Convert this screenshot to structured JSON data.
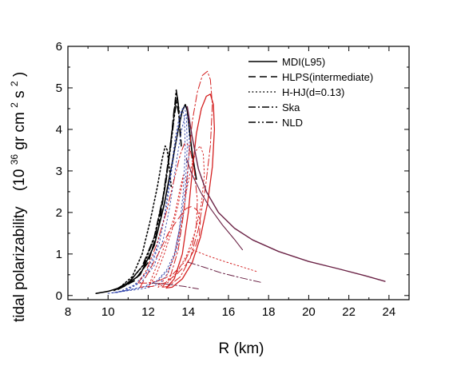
{
  "chart_data": {
    "type": "line",
    "title": "",
    "xlabel": "R (km)",
    "ylabel": {
      "prefix": "tidal polarizability",
      "units_open": "(10",
      "units_exp": "36",
      "units_mid": " gr cm",
      "units_exp2": "2",
      "units_end": " s",
      "units_exp3": "2",
      "units_close": ")"
    },
    "xlim": [
      8,
      25
    ],
    "ylim": [
      -0.1,
      6
    ],
    "xticks": [
      8,
      10,
      12,
      14,
      16,
      18,
      20,
      22,
      24
    ],
    "yticks": [
      0,
      1,
      2,
      3,
      4,
      5,
      6
    ],
    "grid": false,
    "legend_position": "top-right",
    "legend": [
      {
        "label": "MDI(L95)",
        "dash": "solid"
      },
      {
        "label": "HLPS(intermediate)",
        "dash": "dashed"
      },
      {
        "label": "H-HJ(d=0.13)",
        "dash": "dotted"
      },
      {
        "label": "Ska",
        "dash": "dashdot"
      },
      {
        "label": "NLD",
        "dash": "dashdotdot"
      }
    ],
    "colors": {
      "black": "#000000",
      "blue": "#2b3fa8",
      "red": "#d42020",
      "purple": "#6b2346"
    },
    "series": [
      {
        "color": "black",
        "dash": "solid",
        "width": 1.6,
        "x": [
          9.4,
          10.0,
          10.8,
          11.6,
          12.3,
          12.8,
          13.2,
          13.5,
          13.7,
          13.85,
          13.95,
          14.05,
          14.2,
          14.4
        ],
        "y": [
          0.05,
          0.1,
          0.22,
          0.5,
          1.2,
          2.2,
          3.2,
          4.0,
          4.45,
          4.6,
          4.45,
          4.0,
          3.4,
          2.8
        ]
      },
      {
        "color": "black",
        "dash": "dashed",
        "width": 1.6,
        "x": [
          10.5,
          11.3,
          12.0,
          12.5,
          12.9,
          13.15,
          13.3,
          13.4,
          13.55,
          13.65
        ],
        "y": [
          0.15,
          0.35,
          0.8,
          1.6,
          2.8,
          3.8,
          4.5,
          4.7,
          4.3,
          3.6
        ]
      },
      {
        "color": "black",
        "dash": "dotted",
        "width": 1.6,
        "x": [
          10.6,
          11.2,
          11.7,
          12.1,
          12.45,
          12.7,
          12.85,
          12.95,
          13.05,
          13.15
        ],
        "y": [
          0.2,
          0.45,
          1.0,
          1.8,
          2.6,
          3.3,
          3.6,
          3.5,
          3.1,
          2.6
        ]
      },
      {
        "color": "black",
        "dash": "dashdot",
        "width": 1.5,
        "x": [
          10.3,
          11.0,
          11.7,
          12.3,
          12.75,
          13.05,
          13.25,
          13.4,
          13.5,
          13.6
        ],
        "y": [
          0.12,
          0.3,
          0.7,
          1.4,
          2.4,
          3.4,
          4.2,
          4.95,
          4.6,
          3.8
        ]
      },
      {
        "color": "black",
        "dash": "dashdotdot",
        "width": 1.5,
        "x": [
          10.4,
          11.1,
          11.8,
          12.35,
          12.8,
          13.1,
          13.3,
          13.45,
          13.55
        ],
        "y": [
          0.15,
          0.35,
          0.75,
          1.45,
          2.5,
          3.5,
          4.3,
          4.8,
          4.4
        ]
      },
      {
        "color": "blue",
        "dash": "dotted",
        "width": 0.9,
        "x": [
          10.0,
          10.6,
          11.3,
          11.9,
          12.4,
          12.8,
          13.1,
          13.35,
          13.55,
          13.7,
          13.8,
          13.85,
          13.75,
          13.55,
          13.3,
          13.0,
          12.6,
          12.1,
          11.4,
          10.6,
          10.0
        ],
        "y": [
          0.05,
          0.1,
          0.25,
          0.55,
          1.1,
          1.9,
          2.9,
          3.8,
          4.3,
          4.5,
          4.3,
          3.5,
          2.5,
          1.6,
          0.95,
          0.55,
          0.3,
          0.2,
          0.14,
          0.09,
          0.05
        ]
      },
      {
        "color": "blue",
        "dash": "dotted",
        "width": 0.9,
        "x": [
          10.2,
          10.8,
          11.5,
          12.1,
          12.55,
          12.9,
          13.2,
          13.45,
          13.65,
          13.8,
          13.9,
          13.95,
          13.85,
          13.6,
          13.3,
          12.9,
          12.4,
          11.8,
          11.0,
          10.2
        ],
        "y": [
          0.06,
          0.12,
          0.3,
          0.65,
          1.25,
          2.1,
          3.1,
          3.9,
          4.4,
          4.55,
          4.35,
          3.6,
          2.6,
          1.7,
          1.0,
          0.6,
          0.34,
          0.22,
          0.13,
          0.06
        ]
      },
      {
        "color": "blue",
        "dash": "dotted",
        "width": 0.9,
        "x": [
          10.4,
          11.0,
          11.7,
          12.3,
          12.75,
          13.1,
          13.4,
          13.65,
          13.85,
          14.0,
          14.05,
          13.95,
          13.7,
          13.4,
          13.0,
          12.5,
          11.9,
          11.1,
          10.4
        ],
        "y": [
          0.07,
          0.14,
          0.34,
          0.72,
          1.35,
          2.2,
          3.2,
          3.95,
          4.35,
          4.3,
          3.7,
          2.7,
          1.75,
          1.05,
          0.62,
          0.36,
          0.22,
          0.13,
          0.07
        ]
      },
      {
        "color": "red",
        "dash": "dashdot",
        "width": 1.0,
        "x": [
          12.7,
          13.1,
          13.5,
          13.8,
          14.0,
          14.2,
          14.45,
          14.7,
          14.95,
          15.1,
          15.2,
          15.1,
          14.85,
          14.5,
          14.1,
          13.6,
          13.0,
          12.7
        ],
        "y": [
          0.2,
          0.45,
          1.1,
          2.1,
          3.2,
          4.2,
          4.9,
          5.3,
          5.4,
          5.2,
          4.6,
          3.6,
          2.6,
          1.6,
          0.9,
          0.45,
          0.22,
          0.2
        ]
      },
      {
        "color": "red",
        "dash": "solid",
        "width": 1.3,
        "x": [
          12.9,
          13.3,
          13.7,
          14.0,
          14.2,
          14.4,
          14.65,
          14.9,
          15.1,
          15.25,
          15.3,
          15.2,
          14.95,
          14.6,
          14.2,
          13.7,
          13.2,
          12.9
        ],
        "y": [
          0.18,
          0.4,
          1.0,
          2.0,
          3.0,
          3.9,
          4.5,
          4.8,
          4.85,
          4.6,
          4.0,
          3.1,
          2.2,
          1.4,
          0.8,
          0.4,
          0.2,
          0.18
        ]
      },
      {
        "color": "red",
        "dash": "dotted",
        "width": 1.0,
        "x": [
          12.5,
          12.9,
          13.3,
          13.65,
          13.9,
          14.15,
          14.4,
          14.6,
          14.75,
          14.8,
          14.65,
          14.35,
          13.95,
          13.5,
          13.0,
          12.6,
          12.5
        ],
        "y": [
          0.2,
          0.45,
          0.95,
          1.7,
          2.5,
          3.1,
          3.5,
          3.6,
          3.4,
          2.9,
          2.2,
          1.55,
          1.0,
          0.6,
          0.32,
          0.22,
          0.2
        ]
      },
      {
        "color": "red",
        "dash": "dashdotdot",
        "width": 1.0,
        "x": [
          11.5,
          11.9,
          12.4,
          12.9,
          13.3,
          13.6,
          13.8,
          13.95,
          14.1,
          14.3,
          14.45,
          14.4,
          14.2,
          13.8,
          13.2,
          12.5,
          11.9,
          11.5
        ],
        "y": [
          0.3,
          0.6,
          1.2,
          2.0,
          2.8,
          3.4,
          3.65,
          3.65,
          3.5,
          3.0,
          2.3,
          1.7,
          1.2,
          0.8,
          0.5,
          0.35,
          0.3,
          0.3
        ]
      },
      {
        "color": "red",
        "dash": "dashed",
        "width": 1.0,
        "x": [
          11.6,
          12.0,
          12.5,
          13.0,
          13.5,
          13.9,
          14.2,
          14.45,
          14.6,
          14.55,
          14.3,
          13.9,
          13.4,
          12.8,
          12.2,
          11.6
        ],
        "y": [
          0.2,
          0.55,
          1.0,
          1.5,
          1.85,
          2.1,
          2.15,
          2.05,
          1.8,
          1.45,
          1.1,
          0.75,
          0.5,
          0.3,
          0.22,
          0.2
        ]
      },
      {
        "color": "red",
        "dash": "dotted",
        "width": 1.0,
        "x": [
          12.0,
          12.4,
          12.8,
          13.2,
          13.5,
          13.7,
          13.75,
          13.6,
          13.3,
          12.9,
          12.5,
          12.2,
          12.0
        ],
        "y": [
          0.2,
          0.5,
          1.0,
          1.6,
          2.2,
          2.7,
          2.9,
          2.6,
          1.9,
          1.3,
          0.8,
          0.45,
          0.2
        ]
      },
      {
        "color": "purple",
        "dash": "solid",
        "width": 1.4,
        "x": [
          13.95,
          14.2,
          14.5,
          14.9,
          15.5,
          16.3,
          17.2,
          18.5,
          20.0,
          21.5,
          22.8,
          23.8
        ],
        "y": [
          4.55,
          3.8,
          3.05,
          2.5,
          2.0,
          1.62,
          1.34,
          1.06,
          0.82,
          0.64,
          0.48,
          0.34
        ]
      },
      {
        "color": "purple",
        "dash": "solid",
        "width": 1.1,
        "x": [
          13.9,
          14.2,
          14.6,
          15.1,
          15.7,
          16.3,
          16.7
        ],
        "y": [
          3.3,
          2.9,
          2.5,
          2.1,
          1.7,
          1.35,
          1.1
        ]
      },
      {
        "color": "purple",
        "dash": "dashdot",
        "width": 1.0,
        "x": [
          14.0,
          14.8,
          15.6,
          16.5,
          17.6
        ],
        "y": [
          0.8,
          0.68,
          0.55,
          0.44,
          0.32
        ]
      },
      {
        "color": "purple",
        "dash": "dashdot",
        "width": 1.0,
        "x": [
          12.2,
          13.0,
          13.8,
          14.5
        ],
        "y": [
          0.3,
          0.27,
          0.22,
          0.16
        ]
      },
      {
        "color": "red",
        "dash": "dotted",
        "width": 1.0,
        "x": [
          14.2,
          15.0,
          15.8,
          16.6,
          17.4
        ],
        "y": [
          1.1,
          0.95,
          0.82,
          0.7,
          0.58
        ]
      }
    ]
  }
}
